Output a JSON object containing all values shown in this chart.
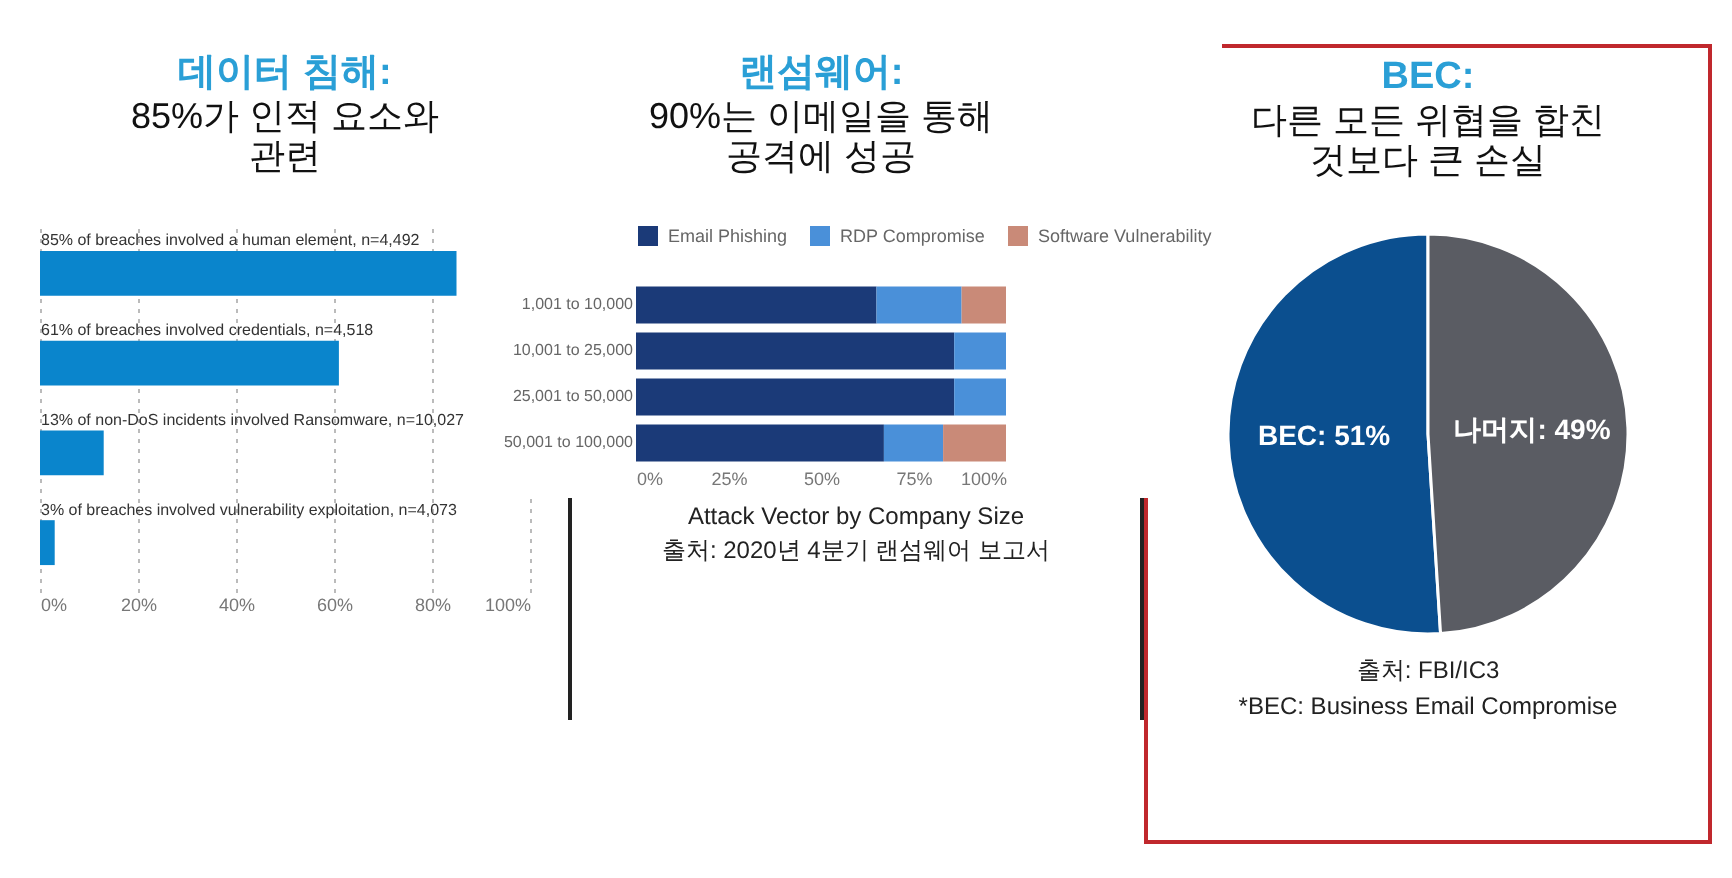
{
  "chart_data": [
    {
      "type": "bar",
      "orientation": "horizontal",
      "title": "데이터 침해:",
      "subtitle": "85%가 인적 요소와 관련",
      "categories": [
        "85% of breaches involved a human element, n=4,492",
        "61% of breaches involved credentials, n=4,518",
        "13% of non-DoS incidents involved Ransomware, n=10,027",
        "3% of breaches involved vulnerability exploitation, n=4,073"
      ],
      "values": [
        85,
        61,
        13,
        3
      ],
      "color": "#0a85cc",
      "xlim": [
        0,
        100
      ],
      "xticks": [
        {
          "value": 0,
          "label": "0%"
        },
        {
          "value": 20,
          "label": "20%"
        },
        {
          "value": 40,
          "label": "40%"
        },
        {
          "value": 60,
          "label": "60%"
        },
        {
          "value": 80,
          "label": "80%"
        },
        {
          "value": 100,
          "label": "100%"
        }
      ],
      "grid": "x"
    },
    {
      "type": "bar",
      "orientation": "horizontal",
      "stacked": true,
      "title": "랜섬웨어:",
      "subtitle": "90%는 이메일을 통해 공격에 성공",
      "categories": [
        "1,001 to 10,000",
        "10,001 to 25,000",
        "25,001 to 50,000",
        "50,001 to 100,000"
      ],
      "series": [
        {
          "name": "Email Phishing",
          "color": "#1b3a78",
          "values": [
            65,
            86,
            86,
            67
          ]
        },
        {
          "name": "RDP Compromise",
          "color": "#4a90d9",
          "values": [
            23,
            14,
            14,
            16
          ]
        },
        {
          "name": "Software Vulnerability",
          "color": "#c98a78",
          "values": [
            12,
            0,
            0,
            17
          ]
        }
      ],
      "xlim": [
        0,
        100
      ],
      "xticks": [
        {
          "value": 0,
          "label": "0%"
        },
        {
          "value": 25,
          "label": "25%"
        },
        {
          "value": 50,
          "label": "50%"
        },
        {
          "value": 75,
          "label": "75%"
        },
        {
          "value": 100,
          "label": "100%"
        }
      ],
      "legend": "top",
      "annotations": [
        "Attack Vector by Company Size",
        "출처: 2020년 4분기 랜섬웨어 보고서"
      ]
    },
    {
      "type": "pie",
      "title": "BEC:",
      "subtitle": "다른 모든 위협을 합친 것보다 큰 손실",
      "categories": [
        "BEC",
        "나머지"
      ],
      "values": [
        51,
        49
      ],
      "colors": [
        "#0b4f8f",
        "#5a5c63"
      ],
      "value_labels": [
        "51%",
        "49%"
      ],
      "annotations": [
        "출처: FBI/IC3",
        "*BEC: Business Email Compromise"
      ]
    }
  ]
}
